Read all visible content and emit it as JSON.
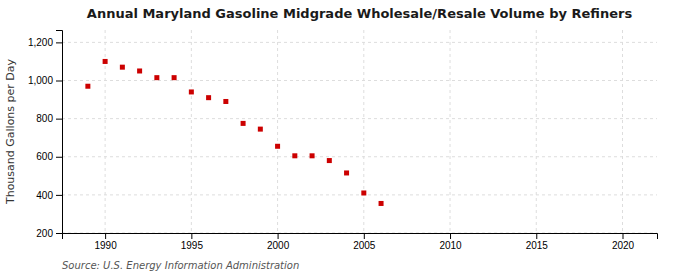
{
  "chart_data": {
    "type": "scatter",
    "title": "Annual Maryland Gasoline Midgrade Wholesale/Resale Volume by Refiners",
    "ylabel": "Thousand Gallons per Day",
    "source": "Source: U.S. Energy Information Administration",
    "x": [
      1989,
      1990,
      1991,
      1992,
      1993,
      1994,
      1995,
      1996,
      1997,
      1998,
      1999,
      2000,
      2001,
      2002,
      2003,
      2004,
      2005,
      2006
    ],
    "values": [
      970,
      1100,
      1070,
      1050,
      1015,
      1015,
      940,
      910,
      890,
      775,
      745,
      655,
      605,
      605,
      580,
      515,
      410,
      355
    ],
    "color": "#cc0000",
    "marker": "square",
    "xlim": [
      1987.5,
      2022
    ],
    "xticks": [
      1990,
      1995,
      2000,
      2005,
      2010,
      2015,
      2020
    ],
    "ylim": [
      200,
      1265
    ],
    "yticks": [
      200,
      400,
      600,
      800,
      {
        "value": 1000,
        "label": "1,000"
      },
      {
        "value": 1200,
        "label": "1,200"
      }
    ],
    "grid": true
  }
}
